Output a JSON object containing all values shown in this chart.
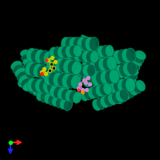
{
  "background_color": "#000000",
  "protein_color": "#00A870",
  "protein_dark": "#006045",
  "protein_light": "#00CC88",
  "ligand1_color": "#CCCC00",
  "ligand1_red": "#FF2200",
  "ligand1_dark": "#444400",
  "ligand2_color": "#CC88CC",
  "ligand2_orange": "#FF8800",
  "ligand2_red": "#FF3333",
  "axis_x_color": "#FF2222",
  "axis_y_color": "#2222FF",
  "axis_origin_color": "#00FF00"
}
